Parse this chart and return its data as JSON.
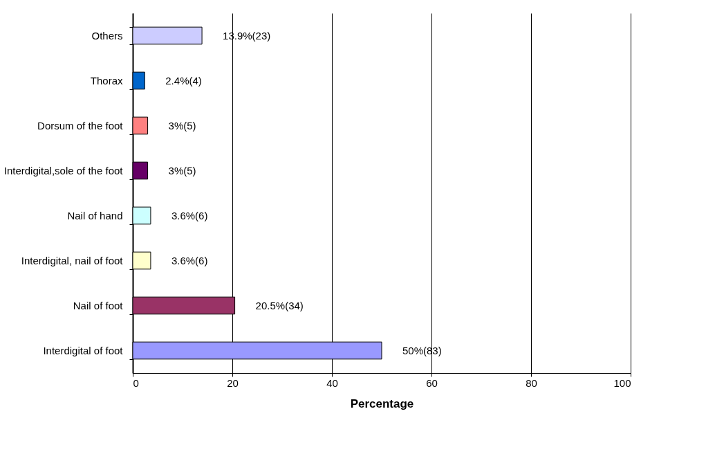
{
  "chart_data": {
    "type": "bar",
    "orientation": "horizontal",
    "xlabel": "Percentage",
    "categories": [
      "Others",
      "Thorax",
      "Dorsum of the foot",
      "Interdigital,sole of the foot",
      "Nail of hand",
      "Interdigital, nail of foot",
      "Nail of foot",
      "Interdigital of foot"
    ],
    "values": [
      13.9,
      2.4,
      3,
      3,
      3.6,
      3.6,
      20.5,
      50
    ],
    "colors": [
      "#ccccff",
      "#0066cc",
      "#ff8080",
      "#660066",
      "#ccffff",
      "#ffffcc",
      "#993366",
      "#9999ff"
    ],
    "value_labels": [
      "13.9%(23)",
      "2.4%(4)",
      "3%(5)",
      "3%(5)",
      "3.6%(6)",
      "3.6%(6)",
      "20.5%(34)",
      "50%(83)"
    ],
    "xlim": [
      0,
      100
    ],
    "xticks": [
      0,
      20,
      40,
      60,
      80,
      100
    ],
    "grid": "x"
  }
}
